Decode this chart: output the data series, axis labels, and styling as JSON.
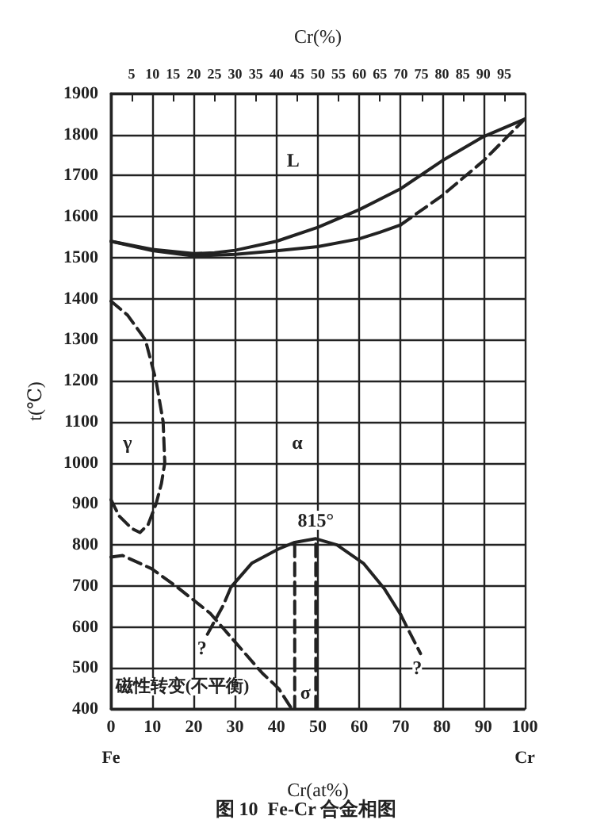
{
  "chart_data": {
    "type": "line",
    "title": "图 10  Fe-Cr 合金相图",
    "xlabel": "Cr(at%)",
    "ylabel": "t(℃)",
    "x2label": "Cr(%)",
    "xlim": [
      0,
      100
    ],
    "xticks": [
      0,
      10,
      20,
      30,
      40,
      50,
      60,
      70,
      80,
      90,
      100
    ],
    "x2lim": [
      0,
      100
    ],
    "x2ticks": [
      5,
      10,
      15,
      20,
      25,
      30,
      35,
      40,
      45,
      50,
      55,
      60,
      65,
      70,
      75,
      80,
      85,
      90,
      95
    ],
    "ylim": [
      400,
      1900
    ],
    "yticks": [
      400,
      500,
      600,
      700,
      800,
      900,
      1000,
      1100,
      1200,
      1300,
      1400,
      1500,
      1600,
      1700,
      1800,
      1900
    ],
    "grid": true,
    "marker": "none",
    "series": [
      {
        "color": "#222222",
        "line_style": "solid",
        "x": [
          0,
          10,
          20,
          25,
          30,
          40,
          50,
          60,
          70,
          80,
          90,
          100
        ],
        "values": [
          1540,
          1520,
          1510,
          1512,
          1518,
          1540,
          1574,
          1617,
          1668,
          1736,
          1795,
          1838
        ]
      },
      {
        "color": "#222222",
        "line_style": "solid",
        "x": [
          0,
          10,
          20,
          30,
          40,
          50,
          60,
          65,
          70
        ],
        "values": [
          1540,
          1517,
          1504,
          1508,
          1517,
          1527,
          1546,
          1562,
          1580
        ]
      },
      {
        "color": "#222222",
        "line_style": "dashed",
        "x": [
          70,
          80,
          90,
          100
        ],
        "values": [
          1580,
          1651,
          1736,
          1838
        ]
      },
      {
        "color": "#222222",
        "line_style": "dashed",
        "x": [
          0,
          4,
          8.3,
          10.9,
          12.6,
          13,
          12.2,
          10.9,
          9,
          7,
          5,
          2,
          0
        ],
        "values": [
          1394,
          1360,
          1300,
          1200,
          1100,
          1000,
          950,
          900,
          850,
          830,
          840,
          870,
          910
        ]
      },
      {
        "color": "#222222",
        "line_style": "dashed",
        "x": [
          0,
          2.8,
          9.8,
          16,
          24,
          30,
          36.6,
          40.5,
          43.7
        ],
        "values": [
          770,
          774,
          742,
          697,
          633,
          563,
          487,
          450,
          400
        ]
      },
      {
        "color": "#222222",
        "line_style": "dashed",
        "x": [
          23.3,
          27.1,
          29
        ],
        "values": [
          582,
          652,
          697
        ]
      },
      {
        "color": "#222222",
        "line_style": "solid",
        "x": [
          29,
          34,
          40.5,
          44.4,
          49.5,
          54.6,
          61,
          66,
          70
        ],
        "values": [
          697,
          755,
          790,
          806,
          815,
          800,
          755,
          694,
          630
        ]
      },
      {
        "color": "#222222",
        "line_style": "dashed",
        "x": [
          70,
          71.9,
          74.8
        ],
        "values": [
          630,
          592,
          535
        ]
      },
      {
        "color": "#222222",
        "line_style": "dashed",
        "x": [
          44.4,
          44.4
        ],
        "values": [
          400,
          806
        ]
      },
      {
        "color": "#222222",
        "line_style": "dashed",
        "x": [
          49.5,
          49.5
        ],
        "values": [
          400,
          815
        ]
      }
    ],
    "annotations": [
      {
        "text": "L",
        "x": 44,
        "y": 1738
      },
      {
        "text": "γ",
        "x": 4,
        "y": 1050
      },
      {
        "text": "α",
        "x": 45,
        "y": 1050
      },
      {
        "text": "815°",
        "x": 49.5,
        "y": 860
      },
      {
        "text": "σ",
        "x": 47,
        "y": 440
      },
      {
        "text": "?",
        "x": 22,
        "y": 548
      },
      {
        "text": "?",
        "x": 74,
        "y": 500
      },
      "磁性转变(不平衡)",
      "Fe",
      "Cr"
    ]
  }
}
